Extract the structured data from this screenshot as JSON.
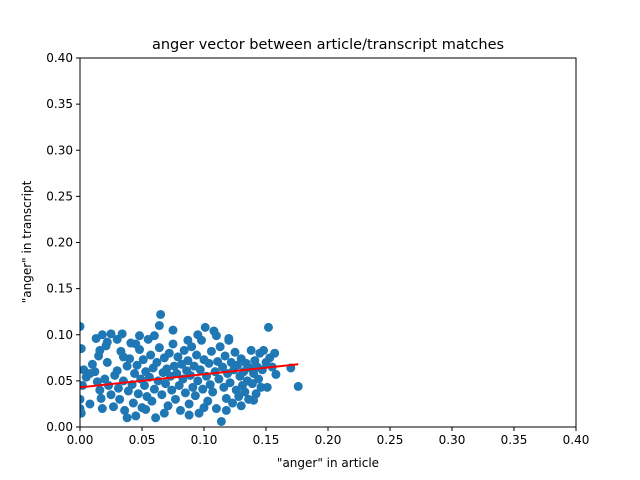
{
  "chart_data": {
    "type": "scatter",
    "title": "anger vector between article/transcript matches",
    "xlabel": "\"anger\" in article",
    "ylabel": "\"anger\" in transcript",
    "xlim": [
      0,
      0.4
    ],
    "ylim": [
      0,
      0.4
    ],
    "xticks": [
      "0.00",
      "0.05",
      "0.10",
      "0.15",
      "0.20",
      "0.25",
      "0.30",
      "0.35",
      "0.40"
    ],
    "yticks": [
      "0.00",
      "0.05",
      "0.10",
      "0.15",
      "0.20",
      "0.25",
      "0.30",
      "0.35",
      "0.40"
    ],
    "grid": false,
    "legend": "none",
    "series": [
      {
        "kind": "scatter",
        "color": "#1f77b4",
        "points": [
          [
            0.0,
            0.109
          ],
          [
            0.001,
            0.085
          ],
          [
            0.0,
            0.03
          ],
          [
            0.0,
            0.02
          ],
          [
            0.001,
            0.015
          ],
          [
            0.002,
            0.045
          ],
          [
            0.003,
            0.062
          ],
          [
            0.008,
            0.058
          ],
          [
            0.01,
            0.068
          ],
          [
            0.012,
            0.06
          ],
          [
            0.014,
            0.049
          ],
          [
            0.015,
            0.077
          ],
          [
            0.016,
            0.04
          ],
          [
            0.017,
            0.031
          ],
          [
            0.018,
            0.02
          ],
          [
            0.02,
            0.052
          ],
          [
            0.022,
            0.07
          ],
          [
            0.021,
            0.088
          ],
          [
            0.016,
            0.083
          ],
          [
            0.023,
            0.045
          ],
          [
            0.025,
            0.035
          ],
          [
            0.027,
            0.022
          ],
          [
            0.028,
            0.056
          ],
          [
            0.03,
            0.061
          ],
          [
            0.031,
            0.042
          ],
          [
            0.032,
            0.03
          ],
          [
            0.033,
            0.082
          ],
          [
            0.034,
            0.101
          ],
          [
            0.035,
            0.05
          ],
          [
            0.036,
            0.018
          ],
          [
            0.038,
            0.066
          ],
          [
            0.039,
            0.039
          ],
          [
            0.04,
            0.074
          ],
          [
            0.041,
            0.091
          ],
          [
            0.042,
            0.046
          ],
          [
            0.043,
            0.026
          ],
          [
            0.044,
            0.058
          ],
          [
            0.045,
            0.012
          ],
          [
            0.046,
            0.067
          ],
          [
            0.047,
            0.036
          ],
          [
            0.048,
            0.084
          ],
          [
            0.049,
            0.052
          ],
          [
            0.05,
            0.021
          ],
          [
            0.051,
            0.073
          ],
          [
            0.052,
            0.045
          ],
          [
            0.053,
            0.06
          ],
          [
            0.054,
            0.033
          ],
          [
            0.055,
            0.095
          ],
          [
            0.056,
            0.054
          ],
          [
            0.057,
            0.078
          ],
          [
            0.058,
            0.028
          ],
          [
            0.059,
            0.064
          ],
          [
            0.06,
            0.041
          ],
          [
            0.061,
            0.01
          ],
          [
            0.062,
            0.07
          ],
          [
            0.063,
            0.05
          ],
          [
            0.064,
            0.086
          ],
          [
            0.065,
            0.122
          ],
          [
            0.066,
            0.035
          ],
          [
            0.067,
            0.059
          ],
          [
            0.068,
            0.075
          ],
          [
            0.069,
            0.047
          ],
          [
            0.07,
            0.063
          ],
          [
            0.071,
            0.023
          ],
          [
            0.072,
            0.08
          ],
          [
            0.073,
            0.055
          ],
          [
            0.074,
            0.04
          ],
          [
            0.075,
            0.09
          ],
          [
            0.076,
            0.066
          ],
          [
            0.077,
            0.03
          ],
          [
            0.078,
            0.058
          ],
          [
            0.079,
            0.076
          ],
          [
            0.08,
            0.045
          ],
          [
            0.081,
            0.018
          ],
          [
            0.082,
            0.068
          ],
          [
            0.083,
            0.052
          ],
          [
            0.084,
            0.083
          ],
          [
            0.085,
            0.037
          ],
          [
            0.086,
            0.061
          ],
          [
            0.087,
            0.072
          ],
          [
            0.088,
            0.025
          ],
          [
            0.089,
            0.056
          ],
          [
            0.09,
            0.087
          ],
          [
            0.091,
            0.043
          ],
          [
            0.092,
            0.066
          ],
          [
            0.093,
            0.034
          ],
          [
            0.094,
            0.078
          ],
          [
            0.095,
            0.05
          ],
          [
            0.096,
            0.015
          ],
          [
            0.097,
            0.062
          ],
          [
            0.098,
            0.094
          ],
          [
            0.099,
            0.041
          ],
          [
            0.1,
            0.073
          ],
          [
            0.101,
            0.108
          ],
          [
            0.102,
            0.055
          ],
          [
            0.103,
            0.028
          ],
          [
            0.104,
            0.069
          ],
          [
            0.105,
            0.046
          ],
          [
            0.106,
            0.082
          ],
          [
            0.107,
            0.038
          ],
          [
            0.108,
            0.104
          ],
          [
            0.109,
            0.06
          ],
          [
            0.11,
            0.02
          ],
          [
            0.111,
            0.071
          ],
          [
            0.112,
            0.052
          ],
          [
            0.113,
            0.087
          ],
          [
            0.114,
            0.006
          ],
          [
            0.115,
            0.065
          ],
          [
            0.116,
            0.043
          ],
          [
            0.117,
            0.077
          ],
          [
            0.118,
            0.031
          ],
          [
            0.119,
            0.058
          ],
          [
            0.12,
            0.094
          ],
          [
            0.121,
            0.048
          ],
          [
            0.122,
            0.07
          ],
          [
            0.123,
            0.026
          ],
          [
            0.124,
            0.062
          ],
          [
            0.125,
            0.081
          ],
          [
            0.126,
            0.04
          ],
          [
            0.127,
            0.067
          ],
          [
            0.128,
            0.033
          ],
          [
            0.129,
            0.055
          ],
          [
            0.13,
            0.074
          ],
          [
            0.131,
            0.045
          ],
          [
            0.132,
            0.06
          ],
          [
            0.133,
            0.038
          ],
          [
            0.134,
            0.069
          ],
          [
            0.135,
            0.05
          ],
          [
            0.136,
            0.03
          ],
          [
            0.137,
            0.064
          ],
          [
            0.138,
            0.083
          ],
          [
            0.139,
            0.047
          ],
          [
            0.14,
            0.058
          ],
          [
            0.141,
            0.072
          ],
          [
            0.142,
            0.036
          ],
          [
            0.143,
            0.065
          ],
          [
            0.144,
            0.052
          ],
          [
            0.145,
            0.08
          ],
          [
            0.146,
            0.043
          ],
          [
            0.147,
            0.062
          ],
          [
            0.148,
            0.083
          ],
          [
            0.15,
            0.07
          ],
          [
            0.151,
            0.043
          ],
          [
            0.152,
            0.108
          ],
          [
            0.153,
            0.075
          ],
          [
            0.155,
            0.065
          ],
          [
            0.157,
            0.08
          ],
          [
            0.158,
            0.057
          ],
          [
            0.17,
            0.064
          ],
          [
            0.176,
            0.044
          ],
          [
            0.06,
            0.099
          ],
          [
            0.075,
            0.105
          ],
          [
            0.035,
            0.076
          ],
          [
            0.045,
            0.09
          ],
          [
            0.095,
            0.1
          ],
          [
            0.12,
            0.096
          ],
          [
            0.025,
            0.101
          ],
          [
            0.013,
            0.096
          ],
          [
            0.053,
            0.019
          ],
          [
            0.038,
            0.01
          ],
          [
            0.068,
            0.015
          ],
          [
            0.088,
            0.013
          ],
          [
            0.1,
            0.021
          ],
          [
            0.13,
            0.023
          ],
          [
            0.14,
            0.029
          ],
          [
            0.008,
            0.025
          ],
          [
            0.005,
            0.054
          ],
          [
            0.018,
            0.1
          ],
          [
            0.022,
            0.092
          ],
          [
            0.087,
            0.094
          ],
          [
            0.048,
            0.099
          ],
          [
            0.03,
            0.095
          ],
          [
            0.11,
            0.099
          ],
          [
            0.064,
            0.11
          ],
          [
            0.118,
            0.018
          ]
        ]
      },
      {
        "kind": "line",
        "color": "#ff0000",
        "x": [
          0.0,
          0.176
        ],
        "y": [
          0.043,
          0.068
        ]
      }
    ]
  }
}
